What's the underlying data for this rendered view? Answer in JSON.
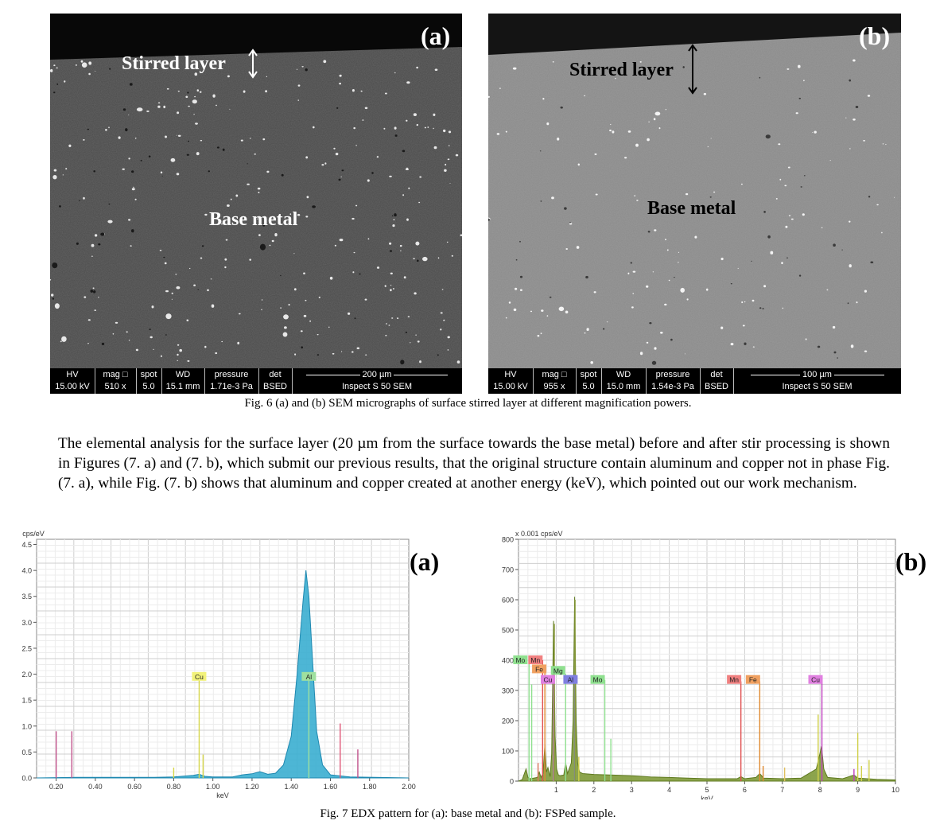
{
  "sem_panels": [
    {
      "letter": "(a)",
      "stirred_label": "Stirred layer",
      "base_label": "Base metal",
      "info": {
        "hv_label": "HV",
        "hv_value": "15.00 kV",
        "mag_label": "mag □",
        "mag_value": "510 x",
        "spot_label": "spot",
        "spot_value": "5.0",
        "wd_label": "WD",
        "wd_value": "15.1 mm",
        "pressure_label": "pressure",
        "pressure_value": "1.71e-3 Pa",
        "det_label": "det",
        "det_value": "BSED",
        "scale_label": "200 µm",
        "instrument": "Inspect S 50 SEM"
      }
    },
    {
      "letter": "(b)",
      "stirred_label": "Stirred layer",
      "base_label": "Base metal",
      "info": {
        "hv_label": "HV",
        "hv_value": "15.00 kV",
        "mag_label": "mag □",
        "mag_value": "955 x",
        "spot_label": "spot",
        "spot_value": "5.0",
        "wd_label": "WD",
        "wd_value": "15.0 mm",
        "pressure_label": "pressure",
        "pressure_value": "1.54e-3 Pa",
        "det_label": "det",
        "det_value": "BSED",
        "scale_label": "100 µm",
        "instrument": "Inspect S 50 SEM"
      }
    }
  ],
  "fig6_caption": "Fig. 6 (a) and (b) SEM micrographs of surface stirred layer at different magnification powers.",
  "paragraph": "The elemental analysis for the surface layer (20 µm from the surface towards the base metal) before and after stir processing is shown in Figures (7. a) and (7. b), which submit our previous results, that the original structure contain aluminum and copper not in phase Fig. (7. a), while Fig. (7. b) shows that aluminum and copper created at another energy (keV), which pointed out our work mechanism.",
  "fig7_caption": "Fig. 7 EDX pattern for (a): base metal and (b): FSPed sample.",
  "chart_data": [
    {
      "type": "area",
      "panel_letter": "(a)",
      "ylabel": "cps/eV",
      "xlabel": "keV",
      "xlim": [
        0.1,
        2.0
      ],
      "ylim": [
        0,
        4.6
      ],
      "x_ticks": [
        "0.20",
        "0.40",
        "0.60",
        "0.80",
        "1.00",
        "1.20",
        "1.40",
        "1.60",
        "1.80",
        "2.00"
      ],
      "y_ticks": [
        "0.0",
        "0.5",
        "1.0",
        "1.5",
        "2.0",
        "2.5",
        "3.0",
        "3.5",
        "4.0",
        "4.5"
      ],
      "grid": true,
      "spectrum": [
        [
          0.1,
          0.0
        ],
        [
          0.3,
          0.01
        ],
        [
          0.5,
          0.01
        ],
        [
          0.7,
          0.01
        ],
        [
          0.8,
          0.02
        ],
        [
          0.9,
          0.05
        ],
        [
          0.93,
          0.07
        ],
        [
          0.96,
          0.03
        ],
        [
          1.0,
          0.02
        ],
        [
          1.1,
          0.02
        ],
        [
          1.15,
          0.06
        ],
        [
          1.2,
          0.08
        ],
        [
          1.24,
          0.12
        ],
        [
          1.28,
          0.07
        ],
        [
          1.32,
          0.09
        ],
        [
          1.36,
          0.25
        ],
        [
          1.4,
          0.8
        ],
        [
          1.43,
          2.0
        ],
        [
          1.46,
          3.4
        ],
        [
          1.475,
          4.0
        ],
        [
          1.49,
          3.5
        ],
        [
          1.51,
          2.2
        ],
        [
          1.53,
          0.9
        ],
        [
          1.56,
          0.25
        ],
        [
          1.6,
          0.06
        ],
        [
          1.7,
          0.02
        ],
        [
          2.0,
          0.0
        ]
      ],
      "lines": [
        {
          "x": 0.2,
          "h": 0.9,
          "color": "#c0508a"
        },
        {
          "x": 0.28,
          "h": 0.9,
          "color": "#c0508a"
        },
        {
          "x": 0.8,
          "h": 0.2,
          "color": "#d6d64a"
        },
        {
          "x": 0.93,
          "h": 1.95,
          "color": "#d6d64a"
        },
        {
          "x": 0.95,
          "h": 0.45,
          "color": "#d6d64a"
        },
        {
          "x": 1.49,
          "h": 1.95,
          "color": "#9fe09f"
        },
        {
          "x": 1.65,
          "h": 1.05,
          "color": "#e05a7a"
        },
        {
          "x": 1.74,
          "h": 0.55,
          "color": "#c0508a"
        }
      ],
      "labels": [
        {
          "text": "Cu",
          "x": 0.93,
          "y": 1.95,
          "color": "#f2f27a"
        },
        {
          "text": "Al",
          "x": 1.49,
          "y": 1.95,
          "color": "#9fe09f"
        }
      ]
    },
    {
      "type": "area",
      "panel_letter": "(b)",
      "ylabel": "x 0.001 cps/eV",
      "xlabel": "keV",
      "xlim": [
        0,
        10
      ],
      "ylim": [
        0,
        800
      ],
      "x_ticks": [
        "1",
        "2",
        "3",
        "4",
        "5",
        "6",
        "7",
        "8",
        "9",
        "10"
      ],
      "y_ticks": [
        "0",
        "100",
        "200",
        "300",
        "400",
        "500",
        "600",
        "700",
        "800"
      ],
      "grid": true,
      "spectrum": [
        [
          0.0,
          0
        ],
        [
          0.1,
          5
        ],
        [
          0.2,
          40
        ],
        [
          0.25,
          12
        ],
        [
          0.3,
          8
        ],
        [
          0.4,
          10
        ],
        [
          0.5,
          12
        ],
        [
          0.55,
          30
        ],
        [
          0.6,
          12
        ],
        [
          0.65,
          25
        ],
        [
          0.7,
          120
        ],
        [
          0.74,
          30
        ],
        [
          0.78,
          45
        ],
        [
          0.84,
          15
        ],
        [
          0.88,
          90
        ],
        [
          0.93,
          530
        ],
        [
          0.97,
          150
        ],
        [
          1.01,
          40
        ],
        [
          1.06,
          20
        ],
        [
          1.1,
          18
        ],
        [
          1.2,
          20
        ],
        [
          1.25,
          60
        ],
        [
          1.3,
          25
        ],
        [
          1.4,
          60
        ],
        [
          1.45,
          200
        ],
        [
          1.49,
          610
        ],
        [
          1.53,
          200
        ],
        [
          1.57,
          60
        ],
        [
          1.62,
          30
        ],
        [
          1.7,
          25
        ],
        [
          2.0,
          22
        ],
        [
          2.5,
          20
        ],
        [
          3.0,
          18
        ],
        [
          3.5,
          14
        ],
        [
          4.0,
          12
        ],
        [
          4.5,
          10
        ],
        [
          5.0,
          8
        ],
        [
          5.5,
          8
        ],
        [
          5.8,
          8
        ],
        [
          5.9,
          15
        ],
        [
          6.0,
          8
        ],
        [
          6.3,
          12
        ],
        [
          6.4,
          25
        ],
        [
          6.5,
          10
        ],
        [
          7.0,
          8
        ],
        [
          7.5,
          10
        ],
        [
          7.9,
          40
        ],
        [
          8.04,
          115
        ],
        [
          8.1,
          40
        ],
        [
          8.2,
          12
        ],
        [
          8.6,
          8
        ],
        [
          8.9,
          20
        ],
        [
          9.0,
          10
        ],
        [
          9.5,
          6
        ],
        [
          10.0,
          4
        ]
      ],
      "lines": [
        {
          "x": 0.28,
          "h": 400,
          "color": "#8fe08f"
        },
        {
          "x": 0.35,
          "h": 320,
          "color": "#8fe08f"
        },
        {
          "x": 0.52,
          "h": 60,
          "color": "#e07a60"
        },
        {
          "x": 0.64,
          "h": 400,
          "color": "#e05050"
        },
        {
          "x": 0.7,
          "h": 380,
          "color": "#e08a30"
        },
        {
          "x": 0.93,
          "h": 355,
          "color": "#c070c0"
        },
        {
          "x": 0.95,
          "h": 520,
          "color": "#8a9a3a"
        },
        {
          "x": 1.25,
          "h": 355,
          "color": "#8fe08f"
        },
        {
          "x": 1.49,
          "h": 355,
          "color": "#7a7ae0"
        },
        {
          "x": 1.5,
          "h": 600,
          "color": "#8a9a3a"
        },
        {
          "x": 1.6,
          "h": 80,
          "color": "#d0d04a"
        },
        {
          "x": 2.29,
          "h": 335,
          "color": "#8fe08f"
        },
        {
          "x": 2.45,
          "h": 140,
          "color": "#8fe08f"
        },
        {
          "x": 5.9,
          "h": 330,
          "color": "#e05050"
        },
        {
          "x": 6.4,
          "h": 330,
          "color": "#e08a30"
        },
        {
          "x": 6.49,
          "h": 50,
          "color": "#e08a30"
        },
        {
          "x": 7.06,
          "h": 45,
          "color": "#e0c060"
        },
        {
          "x": 7.95,
          "h": 220,
          "color": "#d0d04a"
        },
        {
          "x": 8.05,
          "h": 330,
          "color": "#c040c0"
        },
        {
          "x": 8.9,
          "h": 40,
          "color": "#c040c0"
        },
        {
          "x": 9.0,
          "h": 160,
          "color": "#d0d04a"
        },
        {
          "x": 9.1,
          "h": 50,
          "color": "#d0d04a"
        },
        {
          "x": 9.3,
          "h": 70,
          "color": "#d0d04a"
        }
      ],
      "labels": [
        {
          "text": "Mo",
          "x": 0.05,
          "y": 400,
          "color": "#8fe08f"
        },
        {
          "text": "Mn",
          "x": 0.45,
          "y": 400,
          "color": "#f08080"
        },
        {
          "text": "Fe",
          "x": 0.55,
          "y": 370,
          "color": "#f0a060"
        },
        {
          "text": "Cu",
          "x": 0.78,
          "y": 335,
          "color": "#e080e0"
        },
        {
          "text": "Mg",
          "x": 1.05,
          "y": 365,
          "color": "#8fe08f"
        },
        {
          "text": "Al",
          "x": 1.38,
          "y": 335,
          "color": "#8080e0"
        },
        {
          "text": "Mo",
          "x": 2.1,
          "y": 335,
          "color": "#8fe08f"
        },
        {
          "text": "Mn",
          "x": 5.72,
          "y": 335,
          "color": "#f08080"
        },
        {
          "text": "Fe",
          "x": 6.22,
          "y": 335,
          "color": "#f0a060"
        },
        {
          "text": "Cu",
          "x": 7.88,
          "y": 335,
          "color": "#e080e0"
        }
      ]
    }
  ]
}
